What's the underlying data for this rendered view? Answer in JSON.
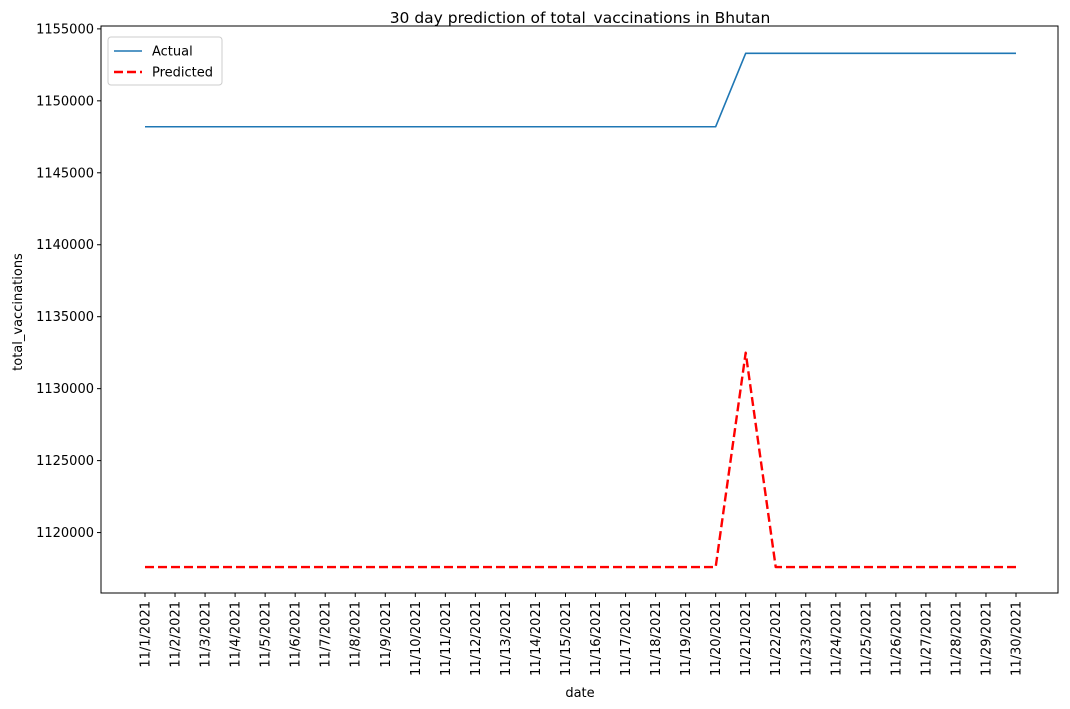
{
  "chart_data": {
    "type": "line",
    "title": "30 day prediction of total_vaccinations in Bhutan",
    "xlabel": "date",
    "ylabel": "total_vaccinations",
    "x": [
      "11/1/2021",
      "11/2/2021",
      "11/3/2021",
      "11/4/2021",
      "11/5/2021",
      "11/6/2021",
      "11/7/2021",
      "11/8/2021",
      "11/9/2021",
      "11/10/2021",
      "11/11/2021",
      "11/12/2021",
      "11/13/2021",
      "11/14/2021",
      "11/15/2021",
      "11/16/2021",
      "11/17/2021",
      "11/18/2021",
      "11/19/2021",
      "11/20/2021",
      "11/21/2021",
      "11/22/2021",
      "11/23/2021",
      "11/24/2021",
      "11/25/2021",
      "11/26/2021",
      "11/27/2021",
      "11/28/2021",
      "11/29/2021",
      "11/30/2021"
    ],
    "ylim": [
      1115800,
      1155200
    ],
    "yticks": [
      "1120000",
      "1125000",
      "1130000",
      "1135000",
      "1140000",
      "1145000",
      "1150000",
      "1155000"
    ],
    "grid": false,
    "legend_position": "upper-left",
    "series": [
      {
        "name": "Actual",
        "color": "#1f77b4",
        "style": "solid",
        "values": [
          1148200,
          1148200,
          1148200,
          1148200,
          1148200,
          1148200,
          1148200,
          1148200,
          1148200,
          1148200,
          1148200,
          1148200,
          1148200,
          1148200,
          1148200,
          1148200,
          1148200,
          1148200,
          1148200,
          1148200,
          1153300,
          1153300,
          1153300,
          1153300,
          1153300,
          1153300,
          1153300,
          1153300,
          1153300,
          1153300
        ]
      },
      {
        "name": "Predicted",
        "color": "#ff0000",
        "style": "dashed",
        "values": [
          1117600,
          1117600,
          1117600,
          1117600,
          1117600,
          1117600,
          1117600,
          1117600,
          1117600,
          1117600,
          1117600,
          1117600,
          1117600,
          1117600,
          1117600,
          1117600,
          1117600,
          1117600,
          1117600,
          1117600,
          1132500,
          1117600,
          1117600,
          1117600,
          1117600,
          1117600,
          1117600,
          1117600,
          1117600,
          1117600
        ]
      }
    ]
  }
}
